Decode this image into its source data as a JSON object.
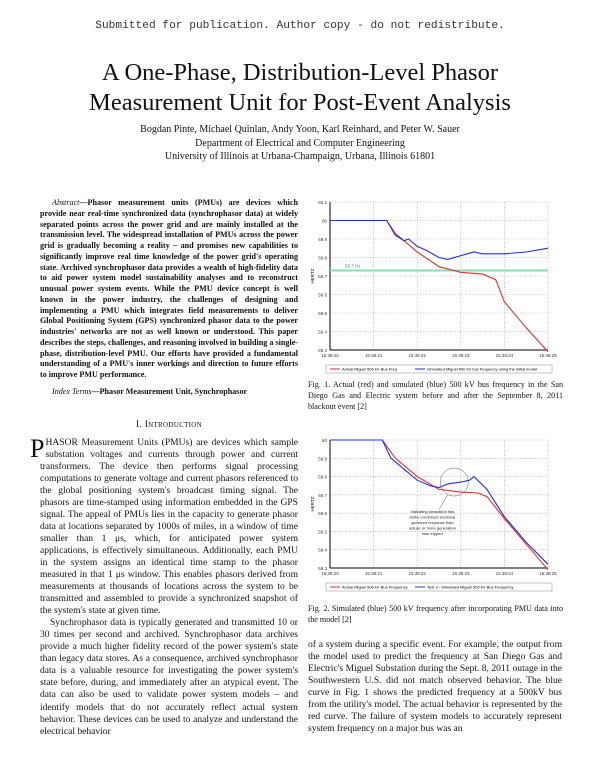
{
  "notice": "Submitted for publication. Author copy - do not redistribute.",
  "title_line1": "A One-Phase, Distribution-Level Phasor",
  "title_line2": "Measurement Unit for Post-Event Analysis",
  "authors": "Bogdan Pinte, Michael Quinlan, Andy Yoon, Karl Reinhard, and Peter W. Sauer",
  "department": "Department of Electrical and Computer Engineering",
  "affiliation": "University of Illinois at Urbana-Champaign, Urbana, Illinois 61801",
  "abstract_label": "Abstract",
  "abstract": "—Phasor measurement units (PMUs) are devices which provide near real-time synchronized data (synchrophasor data) at widely separated points across the power grid and are mainly installed at the transmission level. The widespread installation of PMUs across the power grid is gradually becoming a reality – and promises new capabilities to significantly improve real time knowledge of the power grid's operating state. Archived synchrophasor data provides a wealth of high-fidelity data to aid power system model sustainability analyses and to reconstruct unusual power system events. While the PMU device concept is well known in the power industry, the challenges of designing and implementing a PMU which integrates field measurements to deliver Global Positioning System (GPS) synchronized phasor data to the power industries' networks are not as well known or understood. This paper describes the steps, challenges, and reasoning involved in building a single-phase, distribution-level PMU. Our efforts have provided a fundamental understanding of a PMU's inner workings and direction to future efforts to improve PMU performance.",
  "index_label": "Index Terms",
  "index_terms": "—Phasor Measurement Unit, Synchrophasor",
  "section_title": "I. Introduction",
  "dropcap": "P",
  "intro_p1": "HASOR Measurement Units (PMUs) are devices which sample substation voltages and currents through power and current transformers. The device then performs signal processing computations to generate voltage and current phasors referenced to the global positioning system's broadcast timing signal. The phasors are time-stamped using information embedded in the GPS signal. The appeal of PMUs lies in the capacity to generate phasor data at locations separated by 1000s of miles, in a window of time smaller than 1 μs, which, for anticipated power system applications, is effectively simultaneous. Additionally, each PMU in the system assigns an identical time stamp to the phasor measured in that 1 μs window. This enables phasors derived from measurements at thousands of locations across the system to be transmitted and assembled to provide a synchronized snapshot of the system's state at given time.",
  "intro_p2": "Synchrophasor data is typically generated and transmitted 10 or 30 times per second and archived. Synchrophasor data archives provide a much higher fidelity record of the power system's state than legacy data stores. As a consequence, archived synchrophasor data is a valuable resource for investigating the power system's state before, during, and immediately after an atypical event. The data can also be used to validate power system models – and identify models that do not accurately reflect actual system behavior. These devices can be used to analyze and understand the electrical behavior",
  "intro_p2_cont": "of a system during a specific event. For example, the output from the model used to predict the frequency at San Diego Gas and Electric's Miguel Substation during the Sept. 8, 2011 outage in the Southwestern U.S. did not match observed behavior. The blue curve in Fig. 1 shows the predicted frequency at a 500kV bus from the utility's model. The actual behavior is represented by the red curve. The failure of system models to accurately represent system frequency on a major bus was an",
  "fig1_caption": "Fig. 1.  Actual (red) and simulated (blue) 500 kV bus frequency in the San Diego Gas and Electric system before and after the September 8, 2011 blackout event [2]",
  "fig2_caption": "Fig. 2.  Simulated (blue) 500 kV frequency after incorporating PMU data into the model [2]",
  "chart_data": [
    {
      "type": "line",
      "ylabel": "HERTZ",
      "xticks": [
        "15:38:20",
        "15:38:21",
        "15:38:22",
        "15:38:23",
        "15:38:24",
        "15:38:25"
      ],
      "yticks": [
        "60.1",
        "60",
        "59.9",
        "59.8",
        "59.7",
        "59.6",
        "59.5",
        "59.4",
        "59.3"
      ],
      "xlim": [
        20,
        25
      ],
      "ylim": [
        59.3,
        60.1
      ],
      "grid": true,
      "legend_placement": "bottom",
      "reference_line": {
        "value": 59.73,
        "label": "59.7 Hz",
        "color": "#7fe0b0"
      },
      "series": [
        {
          "name": "Actual Miguel 500 kV Bus Freq",
          "color": "#e03030",
          "x": [
            20,
            21.3,
            21.5,
            21.8,
            22.0,
            22.5,
            23.0,
            23.5,
            23.8,
            24.0,
            24.5,
            25.0
          ],
          "y": [
            60.0,
            60.0,
            59.93,
            59.87,
            59.83,
            59.75,
            59.72,
            59.71,
            59.68,
            59.56,
            59.42,
            59.29
          ]
        },
        {
          "name": "Simulated Miguel 500 kV bus frequency using the initial model",
          "color": "#2030d0",
          "x": [
            20,
            21.3,
            21.5,
            21.7,
            21.8,
            22.0,
            22.2,
            22.5,
            22.7,
            23.0,
            23.3,
            23.5,
            24.0,
            24.5,
            25.0
          ],
          "y": [
            60.0,
            60.0,
            59.92,
            59.89,
            59.9,
            59.86,
            59.84,
            59.8,
            59.79,
            59.81,
            59.83,
            59.82,
            59.82,
            59.83,
            59.85
          ]
        }
      ]
    },
    {
      "type": "line",
      "ylabel": "HERTZ",
      "xticks": [
        "15:38:20",
        "15:38:21",
        "15:38:22",
        "15:38:23",
        "15:38:24",
        "15:38:25"
      ],
      "yticks": [
        "60",
        "59.9",
        "59.8",
        "59.7",
        "59.6",
        "59.5",
        "59.4",
        "59.3"
      ],
      "xlim": [
        20,
        25
      ],
      "ylim": [
        59.3,
        60.0
      ],
      "grid": true,
      "legend_placement": "bottom",
      "annotation": "Indicating simulation has better combined sectional governor response than actual, or more generation was tripped",
      "series": [
        {
          "name": "Actual Miguel 500 kV Bus Frequency",
          "color": "#e03030",
          "x": [
            20,
            21.2,
            21.5,
            22.0,
            22.5,
            23.0,
            23.4,
            23.6,
            24.0,
            24.5,
            25.0
          ],
          "y": [
            60.0,
            60.0,
            59.9,
            59.8,
            59.73,
            59.715,
            59.71,
            59.69,
            59.57,
            59.43,
            59.29
          ]
        },
        {
          "name": "Test 3 - Simulated Miguel 500 kV Bus Frequency",
          "color": "#2030e0",
          "x": [
            20,
            21.2,
            21.4,
            21.6,
            21.8,
            22.0,
            22.3,
            22.5,
            22.7,
            23.0,
            23.2,
            23.3,
            23.6,
            24.0,
            24.5,
            25.0
          ],
          "y": [
            60.0,
            60.0,
            59.9,
            59.86,
            59.82,
            59.78,
            59.75,
            59.74,
            59.76,
            59.77,
            59.78,
            59.8,
            59.73,
            59.58,
            59.44,
            59.32
          ]
        }
      ]
    }
  ]
}
